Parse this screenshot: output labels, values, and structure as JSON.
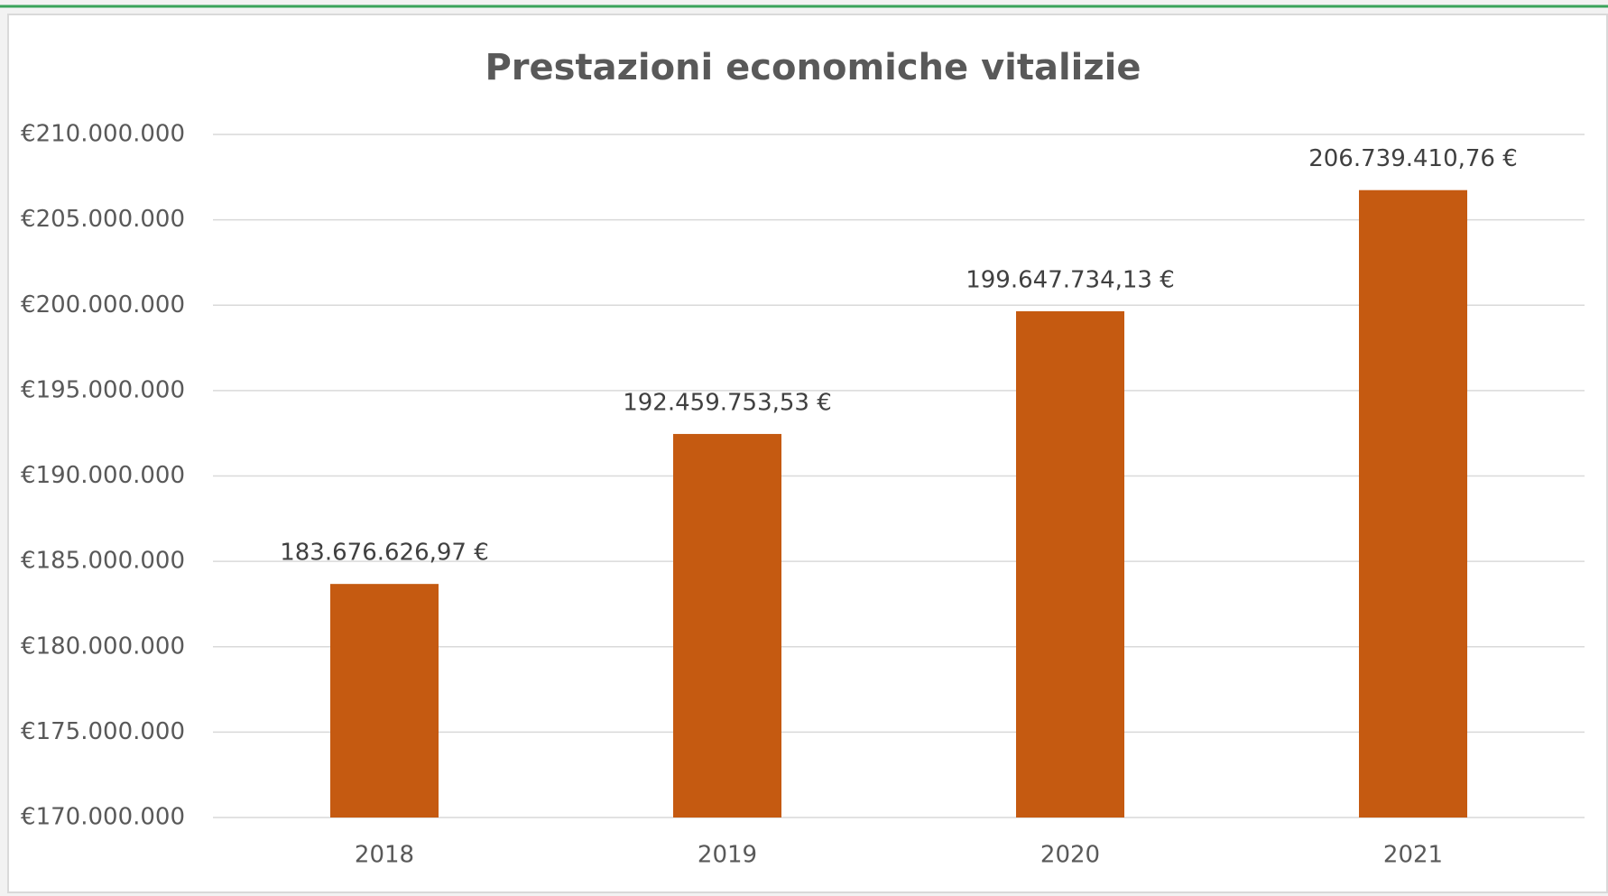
{
  "chart_data": {
    "type": "bar",
    "title": "Prestazioni economiche vitalizie",
    "categories": [
      "2018",
      "2019",
      "2020",
      "2021"
    ],
    "values": [
      183676626.97,
      192459753.53,
      199647734.13,
      206739410.76
    ],
    "value_labels": [
      "183.676.626,97 €",
      "192.459.753,53 €",
      "199.647.734,13 €",
      "206.739.410,76 €"
    ],
    "color": "#c55a11",
    "ylim": [
      170000000,
      210000000
    ],
    "yticks": [
      {
        "value": 170000000,
        "label": "€170.000.000"
      },
      {
        "value": 175000000,
        "label": "€175.000.000"
      },
      {
        "value": 180000000,
        "label": "€180.000.000"
      },
      {
        "value": 185000000,
        "label": "€185.000.000"
      },
      {
        "value": 190000000,
        "label": "€190.000.000"
      },
      {
        "value": 195000000,
        "label": "€195.000.000"
      },
      {
        "value": 200000000,
        "label": "€200.000.000"
      },
      {
        "value": 205000000,
        "label": "€205.000.000"
      },
      {
        "value": 210000000,
        "label": "€210.000.000"
      }
    ],
    "grid": true
  }
}
